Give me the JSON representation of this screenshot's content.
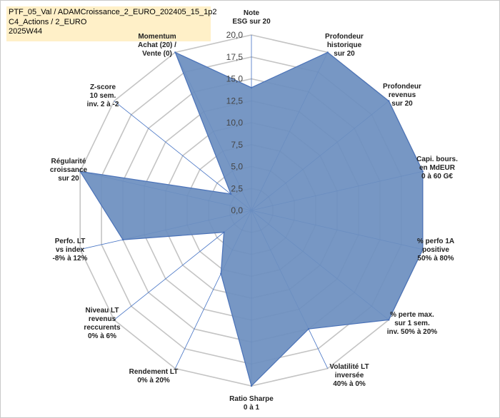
{
  "header": {
    "lines": [
      "PTF_05_Val / ADAMCroissance_2_EURO_202405_15_1p2",
      "C4_Actions / 2_EURO",
      "2025W44"
    ]
  },
  "chart_data": {
    "type": "radar",
    "title": "PTF_05_Val / ADAMCroissance_2_EURO_202405_15_1p2",
    "axes": [
      [
        "Note",
        "ESG sur 20"
      ],
      [
        "Profondeur",
        "historique",
        "sur 20"
      ],
      [
        "Profondeur",
        "revenus",
        "sur 20"
      ],
      [
        "Capi. bours.",
        "en MdEUR",
        "0 à 60 G€"
      ],
      [
        "% perfo 1A",
        "positive",
        "50% à 80%"
      ],
      [
        "% perte max.",
        "sur 1 sem.",
        "inv. 50% à 20%"
      ],
      [
        "Volatilité LT",
        "inversée",
        "40% à 0%"
      ],
      [
        "Ratio Sharpe",
        "0 à 1"
      ],
      [
        "Rendement LT",
        "0% à 20%"
      ],
      [
        "Niveau LT",
        "revenus",
        "reccurents",
        "0% à 6%"
      ],
      [
        "Perfo. LT",
        "vs index",
        "-8% à 12%"
      ],
      [
        "Régularité",
        "croissance",
        "sur 20"
      ],
      [
        "Z-score",
        "10 sem.",
        "inv. 2 à -2"
      ],
      [
        "Momentum",
        "Achat (20) /",
        "Vente (0)"
      ]
    ],
    "values": [
      14,
      20,
      20,
      20,
      20,
      20,
      15,
      20,
      8,
      4,
      15,
      20,
      3,
      20
    ],
    "ticks": [
      "0,0",
      "2,5",
      "5,0",
      "7,5",
      "10,0",
      "12,5",
      "15,0",
      "17,5",
      "20,0"
    ],
    "rmax": 20,
    "grid": true,
    "colors": {
      "fill": "#6d8fbf",
      "stroke": "#4a72b8",
      "grid": "#c4c4c4",
      "spoke": "#4472c4",
      "highlight_label": "#fff0c8"
    }
  }
}
